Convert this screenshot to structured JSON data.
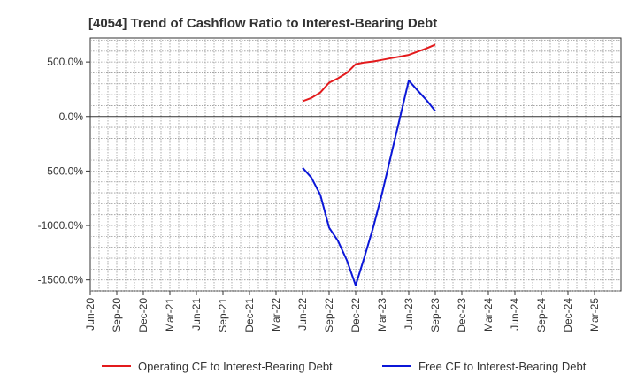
{
  "chart_data": {
    "type": "line",
    "title": "[4054]  Trend of Cashflow Ratio to Interest-Bearing Debt",
    "xlabel": "",
    "ylabel": "",
    "x_tick_labels": [
      "Jun-20",
      "Sep-20",
      "Dec-20",
      "Mar-21",
      "Jun-21",
      "Sep-21",
      "Dec-21",
      "Mar-22",
      "Jun-22",
      "Sep-22",
      "Dec-22",
      "Mar-23",
      "Jun-23",
      "Sep-23",
      "Dec-23",
      "Mar-24",
      "Jun-24",
      "Sep-24",
      "Dec-24",
      "Mar-25"
    ],
    "y_tick_labels": [
      "500.0%",
      "0.0%",
      "-500.0%",
      "-1000.0%",
      "-1500.0%"
    ],
    "y_ticks": [
      500,
      0,
      -500,
      -1000,
      -1500
    ],
    "ylim": [
      -1600,
      720
    ],
    "x_minor_per_major": 3,
    "grid": true,
    "legend_position": "bottom",
    "series": [
      {
        "name": "Operating CF to Interest-Bearing Debt",
        "color": "#e31a1c",
        "points": [
          [
            8.0,
            140
          ],
          [
            8.33,
            170
          ],
          [
            8.67,
            220
          ],
          [
            9.0,
            310
          ],
          [
            9.33,
            350
          ],
          [
            9.67,
            400
          ],
          [
            10.0,
            480
          ],
          [
            10.33,
            495
          ],
          [
            10.67,
            505
          ],
          [
            11.0,
            520
          ],
          [
            11.33,
            535
          ],
          [
            11.67,
            550
          ],
          [
            12.0,
            565
          ],
          [
            12.33,
            595
          ],
          [
            12.67,
            625
          ],
          [
            13.0,
            660
          ]
        ]
      },
      {
        "name": "Free CF to Interest-Bearing Debt",
        "color": "#0b17d8",
        "points": [
          [
            8.0,
            -470
          ],
          [
            8.33,
            -560
          ],
          [
            8.67,
            -720
          ],
          [
            9.0,
            -1020
          ],
          [
            9.33,
            -1140
          ],
          [
            9.67,
            -1320
          ],
          [
            10.0,
            -1550
          ],
          [
            10.33,
            -1290
          ],
          [
            10.67,
            -1010
          ],
          [
            11.0,
            -700
          ],
          [
            11.33,
            -360
          ],
          [
            11.67,
            -10
          ],
          [
            12.0,
            330
          ],
          [
            12.33,
            240
          ],
          [
            12.67,
            150
          ],
          [
            13.0,
            50
          ]
        ]
      }
    ]
  }
}
